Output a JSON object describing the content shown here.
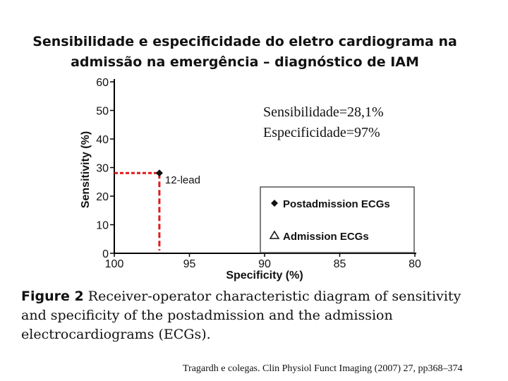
{
  "slide": {
    "title_line1": "Sensibilidade e especificidade do eletro cardiograma na",
    "title_line2": "admissão na emergência – diagnóstico de IAM",
    "annotation_line1": "Sensibilidade=28,1%",
    "annotation_line2": "Especificidade=97%",
    "caption_label": "Figure 2",
    "caption_text": "Receiver-operator characteristic diagram of sensitivity and specificity of the postadmission and the admission electrocardiograms (ECGs).",
    "source": "Tragardh e colegas. Clin Physiol Funct Imaging (2007) 27, pp368–374"
  },
  "chart_data": {
    "type": "scatter",
    "xlabel": "Specificity (%)",
    "ylabel": "Sensitivity (%)",
    "xlim": [
      100,
      80
    ],
    "ylim": [
      0,
      60
    ],
    "x_ticks": [
      100,
      95,
      90,
      85,
      80
    ],
    "y_ticks": [
      0,
      10,
      20,
      30,
      40,
      50,
      60
    ],
    "series": [
      {
        "name": "Postadmission ECGs",
        "marker": "diamond",
        "points": [
          {
            "x": 97,
            "y": 28.1,
            "label": "12-lead"
          }
        ]
      },
      {
        "name": "Admission ECGs",
        "marker": "triangle-open",
        "points": []
      }
    ],
    "legend_position": "bottom-right",
    "highlight_color": "#e0191c"
  }
}
